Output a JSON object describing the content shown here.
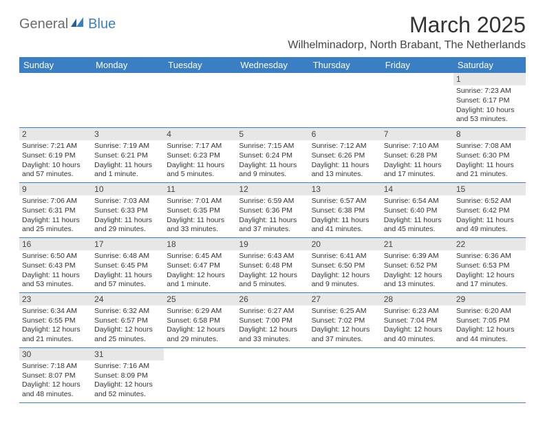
{
  "logo": {
    "part1": "General",
    "part2": "Blue"
  },
  "title": "March 2025",
  "location": "Wilhelminadorp, North Brabant, The Netherlands",
  "colors": {
    "header_bg": "#3a7fc4",
    "header_fg": "#ffffff",
    "daynum_bg": "#e7e7e7",
    "rule": "#3a7fc4",
    "logo_gray": "#6b6b6b",
    "logo_blue": "#3a7fc4"
  },
  "weekdays": [
    "Sunday",
    "Monday",
    "Tuesday",
    "Wednesday",
    "Thursday",
    "Friday",
    "Saturday"
  ],
  "weeks": [
    [
      null,
      null,
      null,
      null,
      null,
      null,
      {
        "n": "1",
        "sunrise": "Sunrise: 7:23 AM",
        "sunset": "Sunset: 6:17 PM",
        "daylight": "Daylight: 10 hours and 53 minutes."
      }
    ],
    [
      {
        "n": "2",
        "sunrise": "Sunrise: 7:21 AM",
        "sunset": "Sunset: 6:19 PM",
        "daylight": "Daylight: 10 hours and 57 minutes."
      },
      {
        "n": "3",
        "sunrise": "Sunrise: 7:19 AM",
        "sunset": "Sunset: 6:21 PM",
        "daylight": "Daylight: 11 hours and 1 minute."
      },
      {
        "n": "4",
        "sunrise": "Sunrise: 7:17 AM",
        "sunset": "Sunset: 6:23 PM",
        "daylight": "Daylight: 11 hours and 5 minutes."
      },
      {
        "n": "5",
        "sunrise": "Sunrise: 7:15 AM",
        "sunset": "Sunset: 6:24 PM",
        "daylight": "Daylight: 11 hours and 9 minutes."
      },
      {
        "n": "6",
        "sunrise": "Sunrise: 7:12 AM",
        "sunset": "Sunset: 6:26 PM",
        "daylight": "Daylight: 11 hours and 13 minutes."
      },
      {
        "n": "7",
        "sunrise": "Sunrise: 7:10 AM",
        "sunset": "Sunset: 6:28 PM",
        "daylight": "Daylight: 11 hours and 17 minutes."
      },
      {
        "n": "8",
        "sunrise": "Sunrise: 7:08 AM",
        "sunset": "Sunset: 6:30 PM",
        "daylight": "Daylight: 11 hours and 21 minutes."
      }
    ],
    [
      {
        "n": "9",
        "sunrise": "Sunrise: 7:06 AM",
        "sunset": "Sunset: 6:31 PM",
        "daylight": "Daylight: 11 hours and 25 minutes."
      },
      {
        "n": "10",
        "sunrise": "Sunrise: 7:03 AM",
        "sunset": "Sunset: 6:33 PM",
        "daylight": "Daylight: 11 hours and 29 minutes."
      },
      {
        "n": "11",
        "sunrise": "Sunrise: 7:01 AM",
        "sunset": "Sunset: 6:35 PM",
        "daylight": "Daylight: 11 hours and 33 minutes."
      },
      {
        "n": "12",
        "sunrise": "Sunrise: 6:59 AM",
        "sunset": "Sunset: 6:36 PM",
        "daylight": "Daylight: 11 hours and 37 minutes."
      },
      {
        "n": "13",
        "sunrise": "Sunrise: 6:57 AM",
        "sunset": "Sunset: 6:38 PM",
        "daylight": "Daylight: 11 hours and 41 minutes."
      },
      {
        "n": "14",
        "sunrise": "Sunrise: 6:54 AM",
        "sunset": "Sunset: 6:40 PM",
        "daylight": "Daylight: 11 hours and 45 minutes."
      },
      {
        "n": "15",
        "sunrise": "Sunrise: 6:52 AM",
        "sunset": "Sunset: 6:42 PM",
        "daylight": "Daylight: 11 hours and 49 minutes."
      }
    ],
    [
      {
        "n": "16",
        "sunrise": "Sunrise: 6:50 AM",
        "sunset": "Sunset: 6:43 PM",
        "daylight": "Daylight: 11 hours and 53 minutes."
      },
      {
        "n": "17",
        "sunrise": "Sunrise: 6:48 AM",
        "sunset": "Sunset: 6:45 PM",
        "daylight": "Daylight: 11 hours and 57 minutes."
      },
      {
        "n": "18",
        "sunrise": "Sunrise: 6:45 AM",
        "sunset": "Sunset: 6:47 PM",
        "daylight": "Daylight: 12 hours and 1 minute."
      },
      {
        "n": "19",
        "sunrise": "Sunrise: 6:43 AM",
        "sunset": "Sunset: 6:48 PM",
        "daylight": "Daylight: 12 hours and 5 minutes."
      },
      {
        "n": "20",
        "sunrise": "Sunrise: 6:41 AM",
        "sunset": "Sunset: 6:50 PM",
        "daylight": "Daylight: 12 hours and 9 minutes."
      },
      {
        "n": "21",
        "sunrise": "Sunrise: 6:39 AM",
        "sunset": "Sunset: 6:52 PM",
        "daylight": "Daylight: 12 hours and 13 minutes."
      },
      {
        "n": "22",
        "sunrise": "Sunrise: 6:36 AM",
        "sunset": "Sunset: 6:53 PM",
        "daylight": "Daylight: 12 hours and 17 minutes."
      }
    ],
    [
      {
        "n": "23",
        "sunrise": "Sunrise: 6:34 AM",
        "sunset": "Sunset: 6:55 PM",
        "daylight": "Daylight: 12 hours and 21 minutes."
      },
      {
        "n": "24",
        "sunrise": "Sunrise: 6:32 AM",
        "sunset": "Sunset: 6:57 PM",
        "daylight": "Daylight: 12 hours and 25 minutes."
      },
      {
        "n": "25",
        "sunrise": "Sunrise: 6:29 AM",
        "sunset": "Sunset: 6:58 PM",
        "daylight": "Daylight: 12 hours and 29 minutes."
      },
      {
        "n": "26",
        "sunrise": "Sunrise: 6:27 AM",
        "sunset": "Sunset: 7:00 PM",
        "daylight": "Daylight: 12 hours and 33 minutes."
      },
      {
        "n": "27",
        "sunrise": "Sunrise: 6:25 AM",
        "sunset": "Sunset: 7:02 PM",
        "daylight": "Daylight: 12 hours and 37 minutes."
      },
      {
        "n": "28",
        "sunrise": "Sunrise: 6:23 AM",
        "sunset": "Sunset: 7:04 PM",
        "daylight": "Daylight: 12 hours and 40 minutes."
      },
      {
        "n": "29",
        "sunrise": "Sunrise: 6:20 AM",
        "sunset": "Sunset: 7:05 PM",
        "daylight": "Daylight: 12 hours and 44 minutes."
      }
    ],
    [
      {
        "n": "30",
        "sunrise": "Sunrise: 7:18 AM",
        "sunset": "Sunset: 8:07 PM",
        "daylight": "Daylight: 12 hours and 48 minutes."
      },
      {
        "n": "31",
        "sunrise": "Sunrise: 7:16 AM",
        "sunset": "Sunset: 8:09 PM",
        "daylight": "Daylight: 12 hours and 52 minutes."
      },
      null,
      null,
      null,
      null,
      null
    ]
  ]
}
